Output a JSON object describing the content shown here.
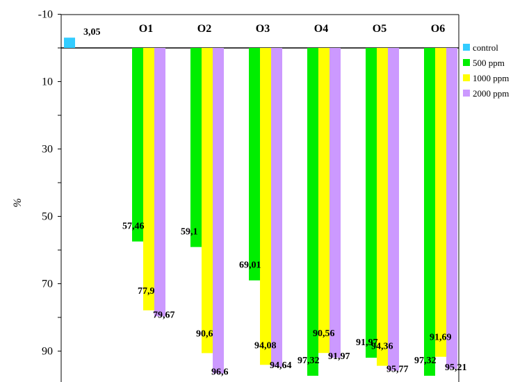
{
  "chart_data": {
    "type": "bar",
    "orientation": "vertical-inverted",
    "title": "",
    "xlabel": "",
    "ylabel": "%",
    "ylim": [
      -10,
      100
    ],
    "y_ticks": [
      "-10",
      "10",
      "30",
      "50",
      "70",
      "90"
    ],
    "categories": [
      "O1",
      "O2",
      "O3",
      "O4",
      "O5",
      "O6"
    ],
    "control": {
      "name": "control",
      "value": 3.05,
      "label": "3,05",
      "color": "#33ccff"
    },
    "series": [
      {
        "name": "500 ppm",
        "color": "#00ee00",
        "values": [
          57.46,
          59.1,
          69.01,
          97.32,
          91.97,
          97.32
        ],
        "labels": [
          "57,46",
          "59,1",
          "69,01",
          "97,32",
          "91,97",
          "97,32"
        ]
      },
      {
        "name": "1000 ppm",
        "color": "#ffff00",
        "values": [
          77.9,
          90.6,
          94.08,
          90.56,
          94.36,
          91.69
        ],
        "labels": [
          "77,9",
          "90,6",
          "94,08",
          "90,56",
          "94,36",
          "91,69"
        ]
      },
      {
        "name": "2000 ppm",
        "color": "#cc99ff",
        "values": [
          79.67,
          96.6,
          94.64,
          91.97,
          95.77,
          95.21
        ],
        "labels": [
          "79,67",
          "96,6",
          "94,64",
          "91,97",
          "95,77",
          "95,21"
        ]
      }
    ],
    "legend": [
      "control",
      "500 ppm",
      "1000 ppm",
      "2000 ppm"
    ],
    "legend_position": "right",
    "grid": false
  }
}
